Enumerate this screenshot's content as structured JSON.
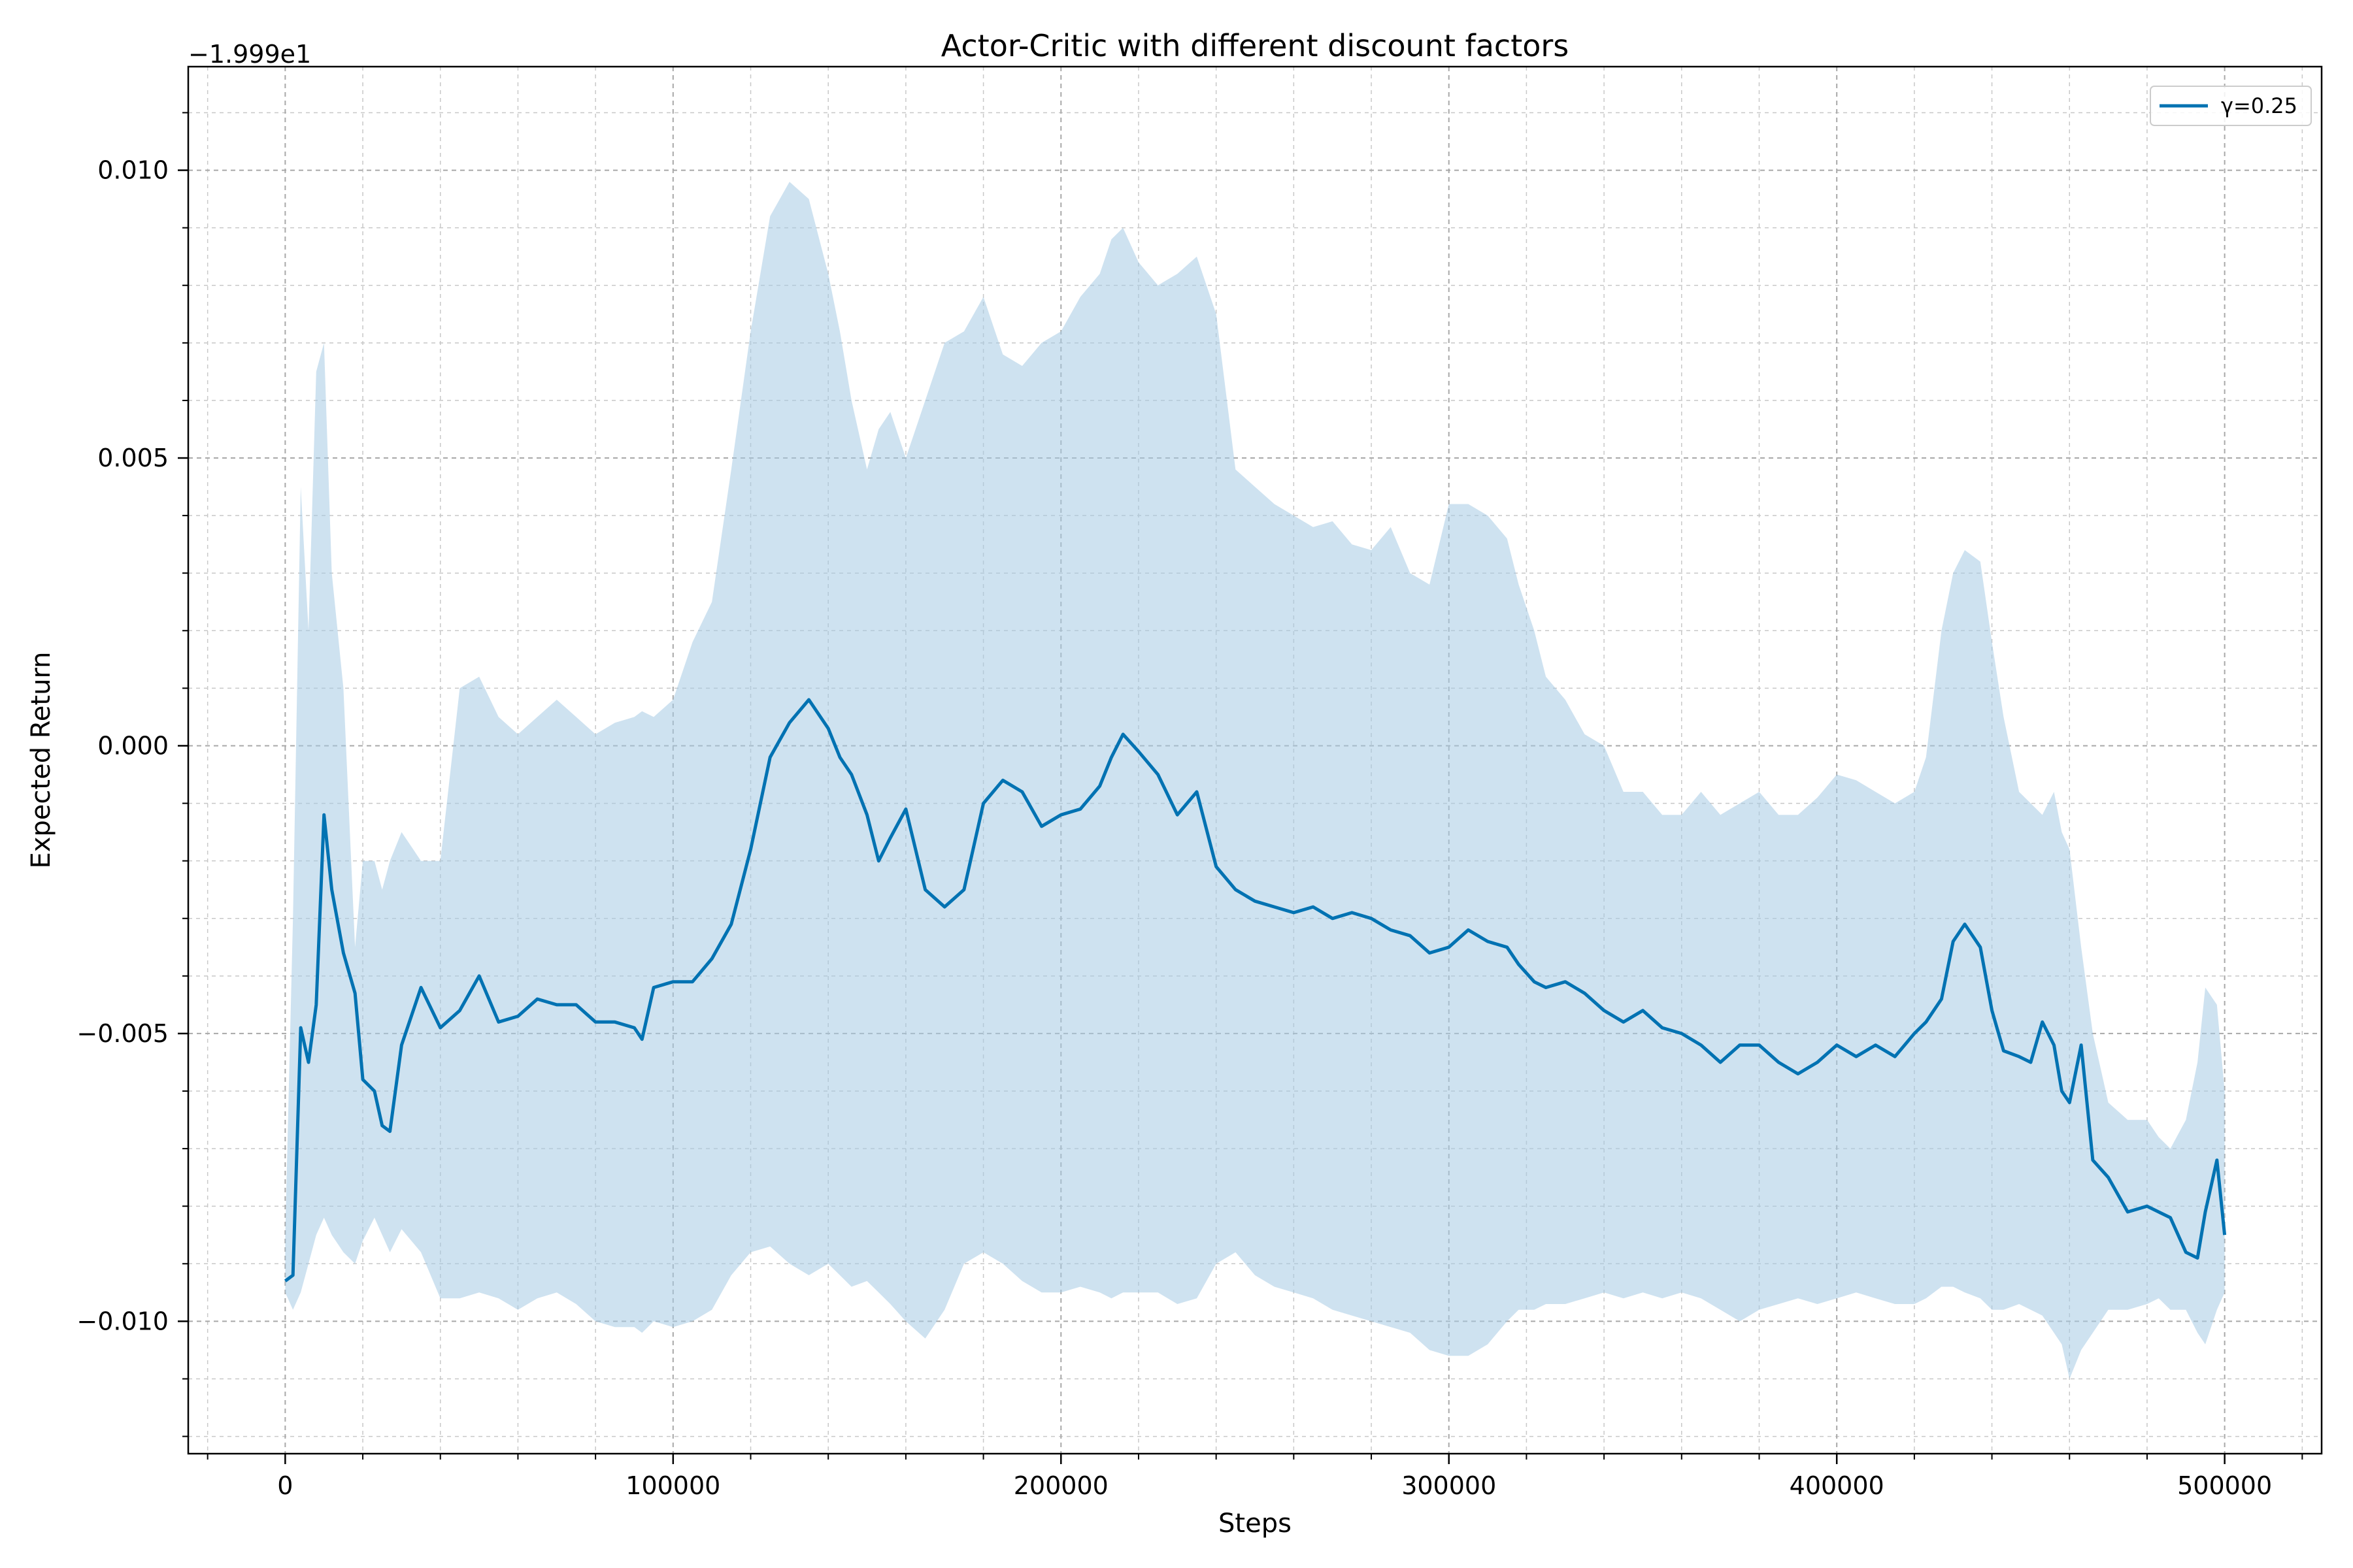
{
  "chart_data": {
    "type": "line",
    "title": "Actor-Critic with different discount factors",
    "xlabel": "Steps",
    "ylabel": "Expected Return",
    "y_offset_label": "−1.999e1",
    "y_offset_value": -19.99,
    "xlim": [
      -25000,
      525000
    ],
    "ylim": [
      -0.0123,
      0.0118
    ],
    "x_ticks": [
      0,
      100000,
      200000,
      300000,
      400000,
      500000
    ],
    "x_tick_labels": [
      "0",
      "100000",
      "200000",
      "300000",
      "400000",
      "500000"
    ],
    "y_ticks": [
      -0.01,
      -0.005,
      0.0,
      0.005,
      0.01
    ],
    "y_tick_labels": [
      "−0.010",
      "−0.005",
      "0.000",
      "0.005",
      "0.010"
    ],
    "grid": true,
    "minor_grid": true,
    "legend_position": "top-right",
    "series": [
      {
        "name": "γ=0.25",
        "color": "#0072b2",
        "band_color": "#a6cbe3",
        "x": [
          0,
          2000,
          4000,
          6000,
          8000,
          10000,
          12000,
          15000,
          18000,
          20000,
          23000,
          25000,
          27000,
          30000,
          35000,
          40000,
          45000,
          50000,
          55000,
          60000,
          65000,
          70000,
          75000,
          80000,
          85000,
          90000,
          92000,
          95000,
          100000,
          105000,
          110000,
          115000,
          120000,
          125000,
          130000,
          135000,
          140000,
          143000,
          146000,
          150000,
          153000,
          156000,
          160000,
          165000,
          170000,
          175000,
          180000,
          185000,
          190000,
          195000,
          200000,
          205000,
          210000,
          213000,
          216000,
          220000,
          225000,
          230000,
          235000,
          240000,
          245000,
          250000,
          255000,
          260000,
          265000,
          270000,
          275000,
          280000,
          285000,
          290000,
          295000,
          300000,
          305000,
          310000,
          315000,
          318000,
          322000,
          325000,
          330000,
          335000,
          340000,
          345000,
          350000,
          355000,
          360000,
          365000,
          370000,
          375000,
          380000,
          385000,
          390000,
          395000,
          400000,
          405000,
          410000,
          415000,
          420000,
          423000,
          427000,
          430000,
          433000,
          437000,
          440000,
          443000,
          447000,
          450000,
          453000,
          456000,
          458000,
          460000,
          463000,
          466000,
          470000,
          475000,
          480000,
          483000,
          486000,
          490000,
          493000,
          495000,
          498000,
          500000
        ],
        "values": [
          -0.0093,
          -0.0092,
          -0.0049,
          -0.0055,
          -0.0045,
          -0.0012,
          -0.0025,
          -0.0036,
          -0.0043,
          -0.0058,
          -0.006,
          -0.0066,
          -0.0067,
          -0.0052,
          -0.0042,
          -0.0049,
          -0.0046,
          -0.004,
          -0.0048,
          -0.0047,
          -0.0044,
          -0.0045,
          -0.0045,
          -0.0048,
          -0.0048,
          -0.0049,
          -0.0051,
          -0.0042,
          -0.0041,
          -0.0041,
          -0.0037,
          -0.0031,
          -0.0018,
          -0.0002,
          0.0004,
          0.0008,
          0.0003,
          -0.0002,
          -0.0005,
          -0.0012,
          -0.002,
          -0.0016,
          -0.0011,
          -0.0025,
          -0.0028,
          -0.0025,
          -0.001,
          -0.0006,
          -0.0008,
          -0.0014,
          -0.0012,
          -0.0011,
          -0.0007,
          -0.0002,
          0.0002,
          -0.0001,
          -0.0005,
          -0.0012,
          -0.0008,
          -0.0021,
          -0.0025,
          -0.0027,
          -0.0028,
          -0.0029,
          -0.0028,
          -0.003,
          -0.0029,
          -0.003,
          -0.0032,
          -0.0033,
          -0.0036,
          -0.0035,
          -0.0032,
          -0.0034,
          -0.0035,
          -0.0038,
          -0.0041,
          -0.0042,
          -0.0041,
          -0.0043,
          -0.0046,
          -0.0048,
          -0.0046,
          -0.0049,
          -0.005,
          -0.0052,
          -0.0055,
          -0.0052,
          -0.0052,
          -0.0055,
          -0.0057,
          -0.0055,
          -0.0052,
          -0.0054,
          -0.0052,
          -0.0054,
          -0.005,
          -0.0048,
          -0.0044,
          -0.0034,
          -0.0031,
          -0.0035,
          -0.0046,
          -0.0053,
          -0.0054,
          -0.0055,
          -0.0048,
          -0.0052,
          -0.006,
          -0.0062,
          -0.0052,
          -0.0072,
          -0.0075,
          -0.0081,
          -0.008,
          -0.0081,
          -0.0082,
          -0.0088,
          -0.0089,
          -0.0081,
          -0.0072,
          -0.0085
        ],
        "upper": [
          -0.0085,
          -0.003,
          0.0045,
          0.002,
          0.0065,
          0.007,
          0.003,
          0.001,
          -0.0035,
          -0.002,
          -0.002,
          -0.0025,
          -0.002,
          -0.0015,
          -0.002,
          -0.002,
          0.001,
          0.0012,
          0.0005,
          0.0002,
          0.0005,
          0.0008,
          0.0005,
          0.0002,
          0.0004,
          0.0005,
          0.0006,
          0.0005,
          0.0008,
          0.0018,
          0.0025,
          0.0048,
          0.0072,
          0.0092,
          0.0098,
          0.0095,
          0.0082,
          0.0072,
          0.006,
          0.0048,
          0.0055,
          0.0058,
          0.005,
          0.006,
          0.007,
          0.0072,
          0.0078,
          0.0068,
          0.0066,
          0.007,
          0.0072,
          0.0078,
          0.0082,
          0.0088,
          0.009,
          0.0084,
          0.008,
          0.0082,
          0.0085,
          0.0075,
          0.0048,
          0.0045,
          0.0042,
          0.004,
          0.0038,
          0.0039,
          0.0035,
          0.0034,
          0.0038,
          0.003,
          0.0028,
          0.0042,
          0.0042,
          0.004,
          0.0036,
          0.0028,
          0.002,
          0.0012,
          0.0008,
          0.0002,
          0.0,
          -0.0008,
          -0.0008,
          -0.0012,
          -0.0012,
          -0.0008,
          -0.0012,
          -0.001,
          -0.0008,
          -0.0012,
          -0.0012,
          -0.0009,
          -0.0005,
          -0.0006,
          -0.0008,
          -0.001,
          -0.0008,
          -0.0002,
          0.002,
          0.003,
          0.0034,
          0.0032,
          0.0018,
          0.0005,
          -0.0008,
          -0.001,
          -0.0012,
          -0.0008,
          -0.0015,
          -0.0018,
          -0.0035,
          -0.005,
          -0.0062,
          -0.0065,
          -0.0065,
          -0.0068,
          -0.007,
          -0.0065,
          -0.0055,
          -0.0042,
          -0.0045,
          -0.006
        ],
        "lower": [
          -0.0095,
          -0.0098,
          -0.0095,
          -0.009,
          -0.0085,
          -0.0082,
          -0.0085,
          -0.0088,
          -0.009,
          -0.0086,
          -0.0082,
          -0.0085,
          -0.0088,
          -0.0084,
          -0.0088,
          -0.0096,
          -0.0096,
          -0.0095,
          -0.0096,
          -0.0098,
          -0.0096,
          -0.0095,
          -0.0097,
          -0.01,
          -0.0101,
          -0.0101,
          -0.0102,
          -0.01,
          -0.0101,
          -0.01,
          -0.0098,
          -0.0092,
          -0.0088,
          -0.0087,
          -0.009,
          -0.0092,
          -0.009,
          -0.0092,
          -0.0094,
          -0.0093,
          -0.0095,
          -0.0097,
          -0.01,
          -0.0103,
          -0.0098,
          -0.009,
          -0.0088,
          -0.009,
          -0.0093,
          -0.0095,
          -0.0095,
          -0.0094,
          -0.0095,
          -0.0096,
          -0.0095,
          -0.0095,
          -0.0095,
          -0.0097,
          -0.0096,
          -0.009,
          -0.0088,
          -0.0092,
          -0.0094,
          -0.0095,
          -0.0096,
          -0.0098,
          -0.0099,
          -0.01,
          -0.0101,
          -0.0102,
          -0.0105,
          -0.0106,
          -0.0106,
          -0.0104,
          -0.01,
          -0.0098,
          -0.0098,
          -0.0097,
          -0.0097,
          -0.0096,
          -0.0095,
          -0.0096,
          -0.0095,
          -0.0096,
          -0.0095,
          -0.0096,
          -0.0098,
          -0.01,
          -0.0098,
          -0.0097,
          -0.0096,
          -0.0097,
          -0.0096,
          -0.0095,
          -0.0096,
          -0.0097,
          -0.0097,
          -0.0096,
          -0.0094,
          -0.0094,
          -0.0095,
          -0.0096,
          -0.0098,
          -0.0098,
          -0.0097,
          -0.0098,
          -0.0099,
          -0.0102,
          -0.0104,
          -0.011,
          -0.0105,
          -0.0102,
          -0.0098,
          -0.0098,
          -0.0097,
          -0.0096,
          -0.0098,
          -0.0098,
          -0.0102,
          -0.0104,
          -0.0098,
          -0.0095
        ]
      }
    ]
  }
}
